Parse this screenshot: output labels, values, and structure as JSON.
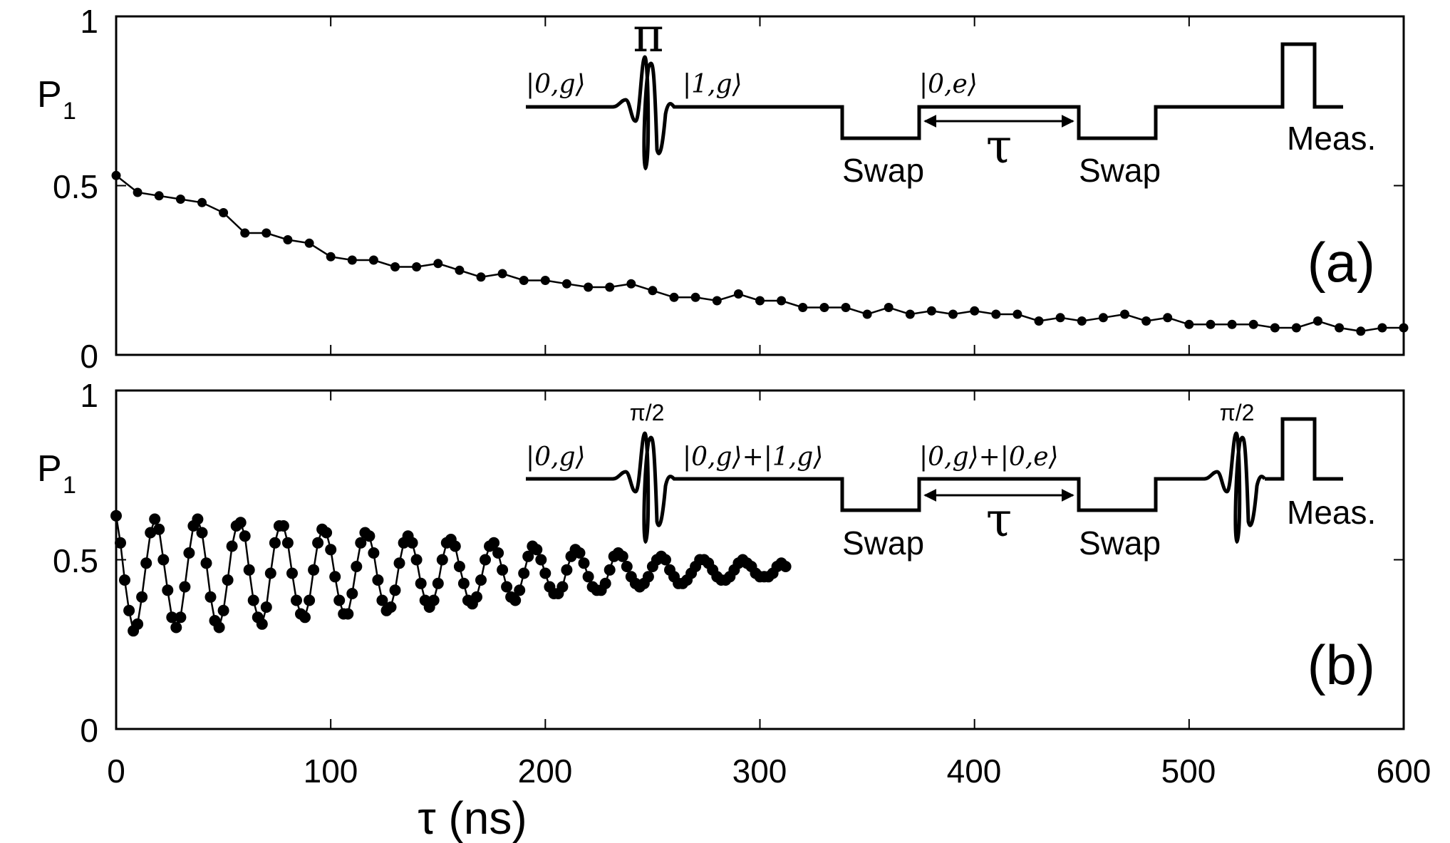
{
  "chart_data": [
    {
      "type": "line",
      "panel_label": "(a)",
      "ylabel": "P",
      "ylabel_sub": "1",
      "xlim": [
        0,
        600
      ],
      "ylim": [
        0,
        1
      ],
      "yticks": [
        0,
        0.5,
        1
      ],
      "ytick_labels": [
        "0",
        "0.5",
        "1"
      ],
      "series": [
        {
          "name": "P1",
          "x": [
            0,
            10,
            20,
            30,
            40,
            50,
            60,
            70,
            80,
            90,
            100,
            110,
            120,
            130,
            140,
            150,
            160,
            170,
            180,
            190,
            200,
            210,
            220,
            230,
            240,
            250,
            260,
            270,
            280,
            290,
            300,
            310,
            320,
            330,
            340,
            350,
            360,
            370,
            380,
            390,
            400,
            410,
            420,
            430,
            440,
            450,
            460,
            470,
            480,
            490,
            500,
            510,
            520,
            530,
            540,
            550,
            560,
            570,
            580,
            590,
            600
          ],
          "values": [
            0.53,
            0.48,
            0.47,
            0.46,
            0.45,
            0.42,
            0.36,
            0.36,
            0.34,
            0.33,
            0.29,
            0.28,
            0.28,
            0.26,
            0.26,
            0.27,
            0.25,
            0.23,
            0.24,
            0.22,
            0.22,
            0.21,
            0.2,
            0.2,
            0.21,
            0.19,
            0.17,
            0.17,
            0.16,
            0.18,
            0.16,
            0.16,
            0.14,
            0.14,
            0.14,
            0.12,
            0.14,
            0.12,
            0.13,
            0.12,
            0.13,
            0.12,
            0.12,
            0.1,
            0.11,
            0.1,
            0.11,
            0.12,
            0.1,
            0.11,
            0.09,
            0.09,
            0.09,
            0.09,
            0.08,
            0.08,
            0.1,
            0.08,
            0.07,
            0.08,
            0.08
          ]
        }
      ],
      "inset": {
        "pulse_label": "π",
        "state_1": "|0,g⟩",
        "state_2": "|1,g⟩",
        "state_3": "|0,e⟩",
        "swap_1": "Swap",
        "swap_2": "Swap",
        "delay_label": "τ",
        "measure_label": "Meas."
      }
    },
    {
      "type": "line",
      "panel_label": "(b)",
      "ylabel": "P",
      "ylabel_sub": "1",
      "xlim": [
        0,
        600
      ],
      "ylim": [
        0,
        1
      ],
      "yticks": [
        0,
        0.5,
        1
      ],
      "ytick_labels": [
        "0",
        "0.5",
        "1"
      ],
      "xticks": [
        0,
        100,
        200,
        300,
        400,
        500,
        600
      ],
      "xtick_labels": [
        "0",
        "100",
        "200",
        "300",
        "400",
        "500",
        "600"
      ],
      "xlabel": "τ (ns)",
      "series": [
        {
          "name": "P1",
          "x_start": 0,
          "x_step": 2,
          "values": [
            0.63,
            0.55,
            0.44,
            0.35,
            0.29,
            0.31,
            0.39,
            0.49,
            0.58,
            0.62,
            0.59,
            0.5,
            0.41,
            0.33,
            0.3,
            0.33,
            0.42,
            0.52,
            0.6,
            0.62,
            0.58,
            0.49,
            0.39,
            0.32,
            0.3,
            0.35,
            0.44,
            0.54,
            0.6,
            0.61,
            0.57,
            0.47,
            0.38,
            0.33,
            0.31,
            0.36,
            0.46,
            0.55,
            0.6,
            0.6,
            0.55,
            0.46,
            0.38,
            0.34,
            0.33,
            0.38,
            0.47,
            0.55,
            0.59,
            0.58,
            0.53,
            0.45,
            0.38,
            0.34,
            0.34,
            0.4,
            0.48,
            0.55,
            0.58,
            0.57,
            0.52,
            0.44,
            0.38,
            0.35,
            0.36,
            0.41,
            0.49,
            0.55,
            0.57,
            0.55,
            0.5,
            0.43,
            0.38,
            0.36,
            0.38,
            0.43,
            0.5,
            0.55,
            0.56,
            0.54,
            0.48,
            0.43,
            0.38,
            0.37,
            0.39,
            0.44,
            0.5,
            0.54,
            0.55,
            0.52,
            0.47,
            0.42,
            0.39,
            0.38,
            0.41,
            0.46,
            0.51,
            0.54,
            0.53,
            0.5,
            0.46,
            0.42,
            0.4,
            0.4,
            0.42,
            0.47,
            0.51,
            0.53,
            0.52,
            0.49,
            0.45,
            0.42,
            0.41,
            0.41,
            0.43,
            0.47,
            0.51,
            0.52,
            0.51,
            0.48,
            0.45,
            0.43,
            0.42,
            0.43,
            0.45,
            0.48,
            0.5,
            0.51,
            0.5,
            0.47,
            0.45,
            0.43,
            0.43,
            0.44,
            0.46,
            0.48,
            0.5,
            0.5,
            0.49,
            0.47,
            0.45,
            0.44,
            0.44,
            0.45,
            0.47,
            0.49,
            0.5,
            0.49,
            0.48,
            0.46,
            0.45,
            0.45,
            0.45,
            0.46,
            0.48,
            0.49,
            0.48
          ]
        }
      ],
      "inset": {
        "pulse_1_label": "π/2",
        "pulse_2_label": "π/2",
        "state_1": "|0,g⟩",
        "state_2": "|0,g⟩+|1,g⟩",
        "state_3": "|0,g⟩+|0,e⟩",
        "swap_1": "Swap",
        "swap_2": "Swap",
        "delay_label": "τ",
        "measure_label": "Meas."
      }
    }
  ]
}
